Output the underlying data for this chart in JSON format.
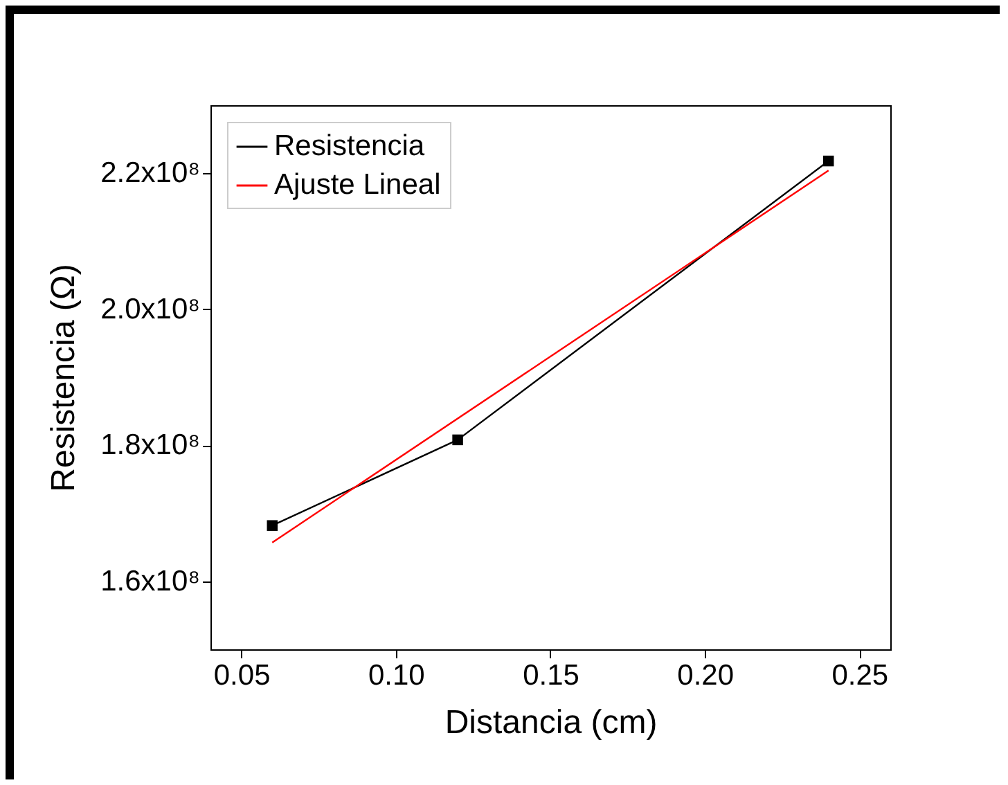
{
  "chart_data": {
    "type": "line",
    "xlabel": "Distancia (cm)",
    "ylabel": "Resistencia (Ω)",
    "xlim": [
      0.04,
      0.26
    ],
    "xticks": [
      {
        "value": 0.05,
        "label": "0.05"
      },
      {
        "value": 0.1,
        "label": "0.10"
      },
      {
        "value": 0.15,
        "label": "0.15"
      },
      {
        "value": 0.2,
        "label": "0.20"
      },
      {
        "value": 0.25,
        "label": "0.25"
      }
    ],
    "ylim": [
      150000000,
      230000000
    ],
    "yticks": [
      {
        "value": 160000000,
        "label": "1.6x10⁸"
      },
      {
        "value": 180000000,
        "label": "1.8x10⁸"
      },
      {
        "value": 200000000,
        "label": "2.0x10⁸"
      },
      {
        "value": 220000000,
        "label": "2.2x10⁸"
      }
    ],
    "x": [
      0.06,
      0.12,
      0.24
    ],
    "series": [
      {
        "name": "Resistencia",
        "color": "#000000",
        "values": [
          168200000,
          180800000,
          221800000
        ],
        "marker": "square"
      },
      {
        "name": "Ajuste Lineal",
        "color": "#ff0000",
        "type": "line",
        "x": [
          0.06,
          0.24
        ],
        "values": [
          165700000,
          220400000
        ],
        "marker": "none"
      }
    ],
    "legend": "top left",
    "grid": false
  }
}
